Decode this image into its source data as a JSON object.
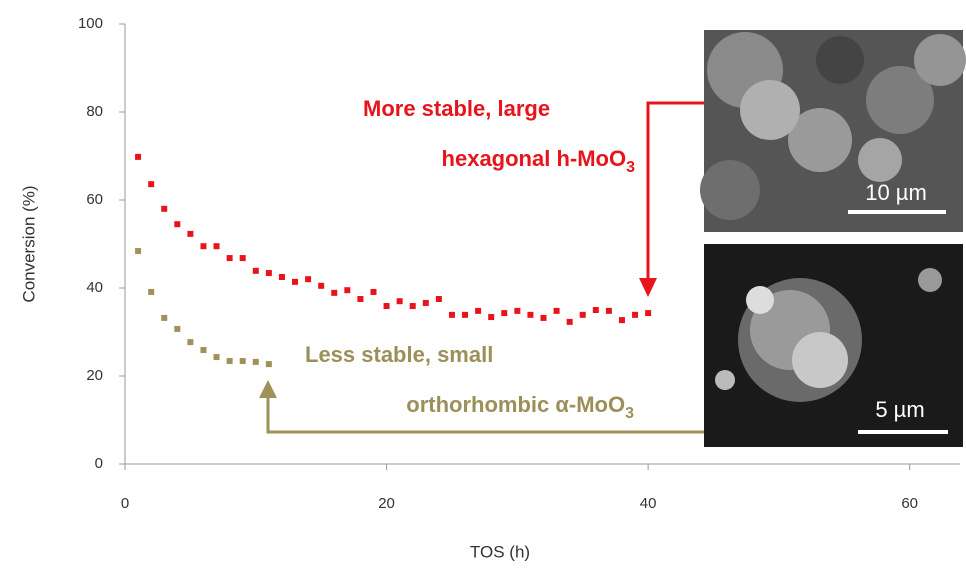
{
  "chart_data": {
    "type": "scatter",
    "xlabel": "TOS (h)",
    "ylabel": "Conversion (%)",
    "xlim": [
      0,
      64
    ],
    "ylim": [
      0,
      100
    ],
    "xticks": [
      0,
      20,
      40,
      60
    ],
    "yticks": [
      0,
      20,
      40,
      60,
      80,
      100
    ],
    "series": [
      {
        "color": "#e8141b",
        "x": [
          1,
          2,
          3,
          4,
          5,
          6,
          7,
          8,
          9,
          10,
          11,
          12,
          13,
          14,
          15,
          16,
          17,
          18,
          19,
          20,
          21,
          22,
          23,
          24,
          25,
          26,
          27,
          28,
          29,
          30,
          31,
          32,
          33,
          34,
          35,
          36,
          37,
          38,
          39,
          40
        ],
        "values": [
          69.8,
          63.6,
          58,
          54.5,
          52.3,
          49.5,
          49.5,
          46.8,
          46.8,
          43.9,
          43.4,
          42.5,
          41.4,
          42,
          40.5,
          38.9,
          39.5,
          37.5,
          39.1,
          35.9,
          37,
          35.9,
          36.6,
          37.5,
          33.9,
          33.9,
          34.8,
          33.4,
          34.3,
          34.8,
          33.9,
          33.2,
          34.8,
          32.3,
          33.9,
          35,
          34.8,
          32.7,
          33.9,
          34.3
        ]
      },
      {
        "color": "#a0915a",
        "x": [
          1,
          2,
          3,
          4,
          5,
          6,
          7,
          8,
          9,
          10,
          11
        ],
        "values": [
          48.4,
          39.1,
          33.2,
          30.7,
          27.7,
          25.9,
          24.3,
          23.4,
          23.4,
          23.2,
          22.7
        ]
      }
    ],
    "annotations": [
      {
        "lines": [
          "More stable, large",
          "hexagonal h-MoO"
        ],
        "subscript": "3",
        "color": "#e8141b"
      },
      {
        "lines": [
          "Less stable, small",
          "orthorhombic α-MoO"
        ],
        "subscript": "3",
        "color": "#9c8f5a"
      }
    ],
    "scale_bars": [
      "10 µm",
      "5 µm"
    ]
  }
}
